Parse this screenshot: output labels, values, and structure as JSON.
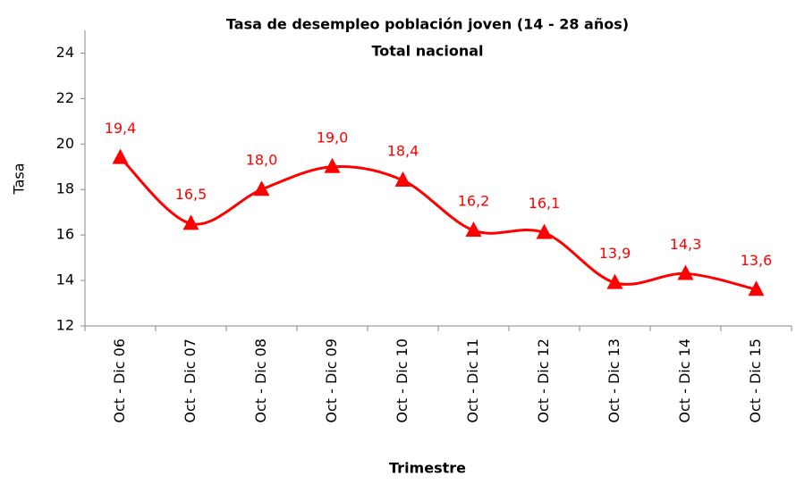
{
  "chart_data": {
    "type": "line",
    "title": "Tasa  de desempleo población  joven (14 - 28 años)",
    "subtitle": "Total nacional",
    "x_label": "Trimestre",
    "y_label": "Tasa",
    "categories": [
      "Oct - Dic 06",
      "Oct - Dic 07",
      "Oct - Dic 08",
      "Oct - Dic 09",
      "Oct - Dic 10",
      "Oct - Dic 11",
      "Oct - Dic 12",
      "Oct - Dic 13",
      "Oct - Dic 14",
      "Oct - Dic 15"
    ],
    "values": [
      19.4,
      16.5,
      18.0,
      19.0,
      18.4,
      16.2,
      16.1,
      13.9,
      14.3,
      13.6
    ],
    "value_labels": [
      "19,4",
      "16,5",
      "18,0",
      "19,0",
      "18,4",
      "16,2",
      "16,1",
      "13,9",
      "14,3",
      "13,6"
    ],
    "color": "#ff0000",
    "smooth": true,
    "ylim": [
      12,
      25
    ],
    "yticks": [
      12,
      14,
      16,
      18,
      20,
      22,
      24
    ],
    "grid": false
  }
}
